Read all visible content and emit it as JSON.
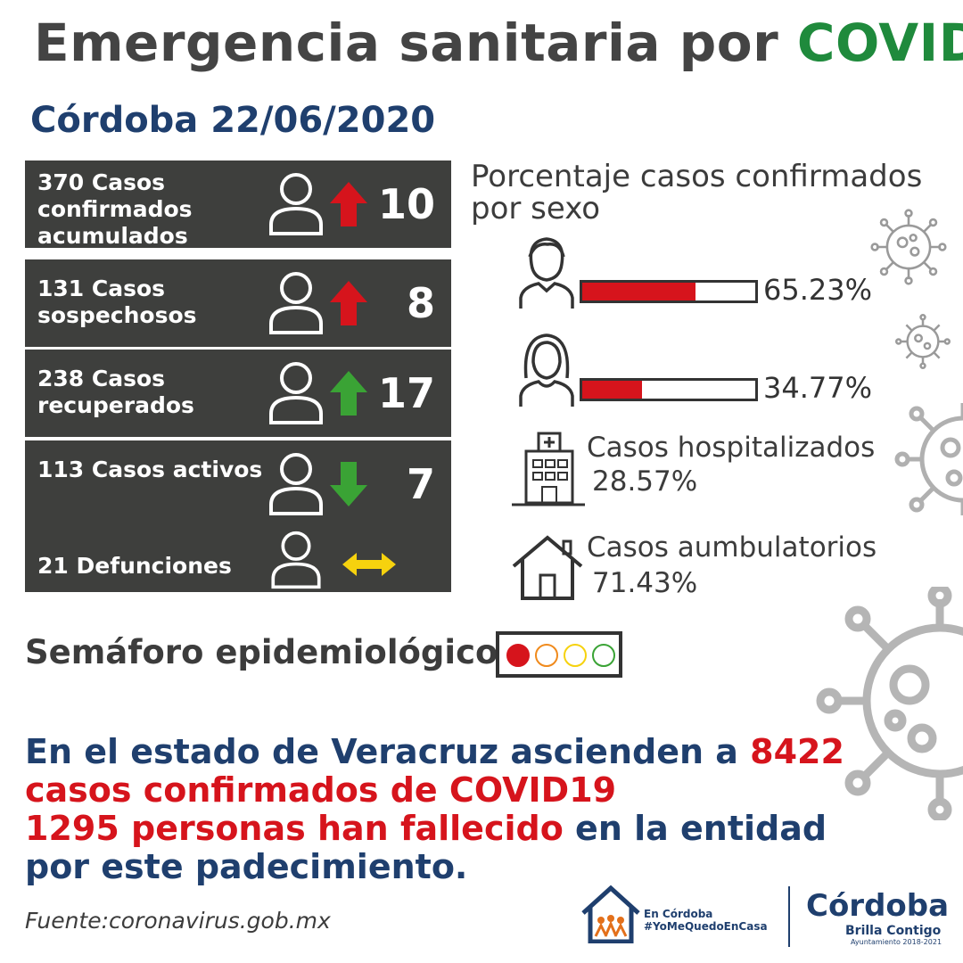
{
  "title": {
    "main": "Emergencia sanitaria por ",
    "accent": "COVID"
  },
  "location_date": "Córdoba 22/06/2020",
  "stats": [
    {
      "label": "370 Casos confirmados acumulados",
      "change": "10",
      "direction": "up",
      "arrow_color": "#d6141c"
    },
    {
      "label": "131 Casos sospechosos",
      "change": "8",
      "direction": "up",
      "arrow_color": "#d6141c"
    },
    {
      "label": "238 Casos recuperados",
      "change": "17",
      "direction": "up",
      "arrow_color": "#3aa335"
    },
    {
      "label": "113 Casos activos",
      "change": "7",
      "direction": "down",
      "arrow_color": "#3aa335"
    },
    {
      "label": "21 Defunciones",
      "change": "",
      "direction": "both",
      "arrow_color": "#f6d20e"
    }
  ],
  "sex_panel": {
    "title": "Porcentaje casos confirmados por sexo",
    "male": {
      "percent_text": "65.23%",
      "value": 65.23,
      "icon": "man-icon"
    },
    "female": {
      "percent_text": "34.77%",
      "value": 34.77,
      "icon": "woman-icon"
    }
  },
  "hospitalized": {
    "label": "Casos hospitalizados",
    "value": "28.57%",
    "icon": "hospital-icon"
  },
  "ambulatory": {
    "label": "Casos aumbulatorios",
    "value": "71.43%",
    "icon": "house-icon"
  },
  "semaforo": {
    "label": "Semáforo epidemiológico",
    "lights": [
      {
        "color": "#d6141c",
        "active": true
      },
      {
        "color": "#f08a1c",
        "active": false
      },
      {
        "color": "#f6d20e",
        "active": false
      },
      {
        "color": "#3aa335",
        "active": false
      }
    ]
  },
  "state_info": {
    "line1": "En el estado de Veracruz ascienden a ",
    "line1_number": "8422",
    "line2": "casos confirmados de COVID19",
    "line3_red": "1295 personas han fallecido",
    "line3_rest": " en la entidad",
    "line4": "por este padecimiento."
  },
  "source": "Fuente:coronavirus.gob.mx",
  "logos": {
    "campaign": {
      "line1": "En Córdoba",
      "line2": "#YoMeQuedoEnCasa"
    },
    "city": {
      "name": "Córdoba",
      "tagline": "Brilla Contigo",
      "period": "Ayuntamiento 2018-2021"
    }
  },
  "colors": {
    "navy": "#1f3f6e",
    "red": "#d6141c",
    "green": "#1f8a3c",
    "dark_panel": "#3e3f3d"
  }
}
